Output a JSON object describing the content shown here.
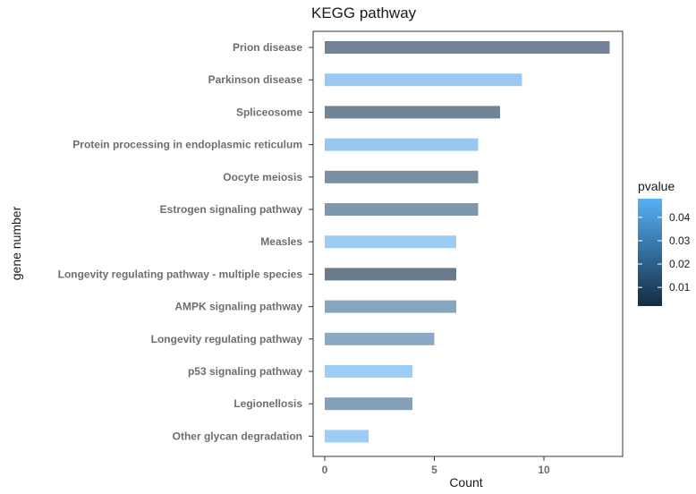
{
  "chart_data": {
    "type": "bar",
    "orientation": "horizontal",
    "title": "KEGG pathway",
    "xlabel": "Count",
    "ylabel": "gene number",
    "xlim": [
      0,
      13.5
    ],
    "xticks": [
      0,
      5,
      10
    ],
    "grid": false,
    "categories": [
      "Prion disease",
      "Parkinson disease",
      "Spliceosome",
      "Protein processing in endoplasmic reticulum",
      "Oocyte meiosis",
      "Estrogen signaling pathway",
      "Measles",
      "Longevity regulating pathway - multiple species",
      "AMPK signaling pathway",
      "Longevity regulating pathway",
      "p53 signaling pathway",
      "Legionellosis",
      "Other glycan degradation"
    ],
    "values": [
      13,
      9,
      8,
      7,
      7,
      7,
      6,
      6,
      6,
      5,
      4,
      4,
      2
    ],
    "colors": [
      "#718394",
      "#99c9f0",
      "#728597",
      "#97c7ee",
      "#7a8fa4",
      "#7f97ae",
      "#9bcdf4",
      "#6a7b8b",
      "#88a5c0",
      "#8aa9c5",
      "#9bcdf6",
      "#849fb8",
      "#9bcdf6"
    ],
    "legend": {
      "title": "pvalue",
      "position": "right",
      "ticks": [
        "0.04",
        "0.03",
        "0.02",
        "0.01"
      ],
      "tick_values": [
        0.04,
        0.03,
        0.02,
        0.01
      ],
      "range": [
        0.002,
        0.048
      ],
      "color_low": "#132b43",
      "color_high": "#56b1f7"
    }
  }
}
